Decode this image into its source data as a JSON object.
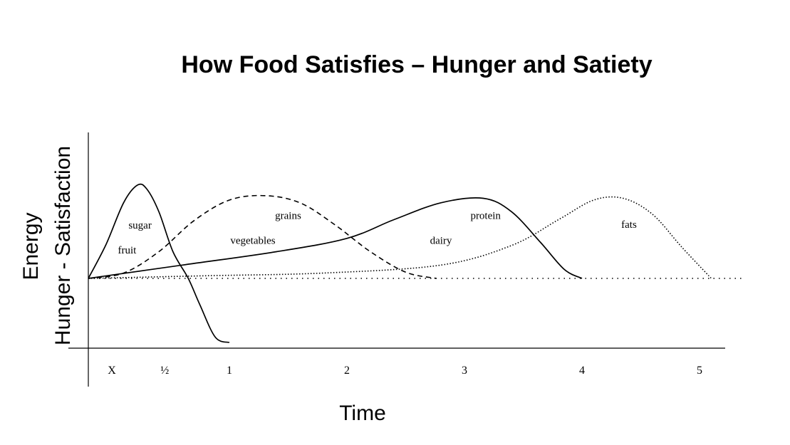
{
  "chart_data": {
    "type": "line",
    "title": "How Food Satisfies  –  Hunger and Satiety",
    "xlabel": "Time",
    "ylabel_lines": [
      "Energy",
      "Hunger - Satisfaction"
    ],
    "xlim": [
      -0.2,
      5.25
    ],
    "ylim": [
      -0.8,
      1.6
    ],
    "baseline": 0,
    "x_ticks": [
      {
        "label": "X",
        "value": 0.2
      },
      {
        "label": "½",
        "value": 0.65
      },
      {
        "label": "1",
        "value": 1.2
      },
      {
        "label": "2",
        "value": 2.2
      },
      {
        "label": "3",
        "value": 3.2
      },
      {
        "label": "4",
        "value": 4.2
      },
      {
        "label": "5",
        "value": 5.2
      }
    ],
    "series": [
      {
        "style": "solid",
        "points": [
          [
            0,
            0
          ],
          [
            0.15,
            0.38
          ],
          [
            0.3,
            0.85
          ],
          [
            0.42,
            1.05
          ],
          [
            0.5,
            1.0
          ],
          [
            0.6,
            0.75
          ],
          [
            0.72,
            0.3
          ],
          [
            0.85,
            0.0
          ],
          [
            0.95,
            -0.3
          ],
          [
            1.08,
            -0.66
          ],
          [
            1.2,
            -0.72
          ]
        ]
      },
      {
        "style": "dashed",
        "points": [
          [
            0,
            0
          ],
          [
            0.3,
            0.06
          ],
          [
            0.6,
            0.3
          ],
          [
            0.9,
            0.65
          ],
          [
            1.2,
            0.88
          ],
          [
            1.5,
            0.93
          ],
          [
            1.8,
            0.85
          ],
          [
            2.1,
            0.6
          ],
          [
            2.4,
            0.3
          ],
          [
            2.7,
            0.07
          ],
          [
            2.96,
            0
          ]
        ]
      },
      {
        "style": "solid",
        "points": [
          [
            0,
            0
          ],
          [
            0.8,
            0.15
          ],
          [
            1.6,
            0.3
          ],
          [
            2.2,
            0.45
          ],
          [
            2.6,
            0.66
          ],
          [
            3.0,
            0.85
          ],
          [
            3.36,
            0.9
          ],
          [
            3.6,
            0.75
          ],
          [
            3.85,
            0.4
          ],
          [
            4.05,
            0.1
          ],
          [
            4.2,
            0
          ]
        ]
      },
      {
        "style": "dotted",
        "points": [
          [
            0,
            0
          ],
          [
            1.0,
            0.03
          ],
          [
            2.0,
            0.06
          ],
          [
            3.0,
            0.15
          ],
          [
            3.6,
            0.37
          ],
          [
            4.0,
            0.66
          ],
          [
            4.3,
            0.88
          ],
          [
            4.55,
            0.9
          ],
          [
            4.8,
            0.72
          ],
          [
            5.05,
            0.35
          ],
          [
            5.3,
            0
          ]
        ]
      }
    ],
    "labels": [
      {
        "text": "sugar",
        "x": 0.44,
        "y": 0.56
      },
      {
        "text": "fruit",
        "x": 0.33,
        "y": 0.28
      },
      {
        "text": "grains",
        "x": 1.7,
        "y": 0.67
      },
      {
        "text": "vegetables",
        "x": 1.4,
        "y": 0.39
      },
      {
        "text": "protein",
        "x": 3.38,
        "y": 0.67
      },
      {
        "text": "dairy",
        "x": 3.0,
        "y": 0.39
      },
      {
        "text": "fats",
        "x": 4.6,
        "y": 0.57
      }
    ]
  }
}
